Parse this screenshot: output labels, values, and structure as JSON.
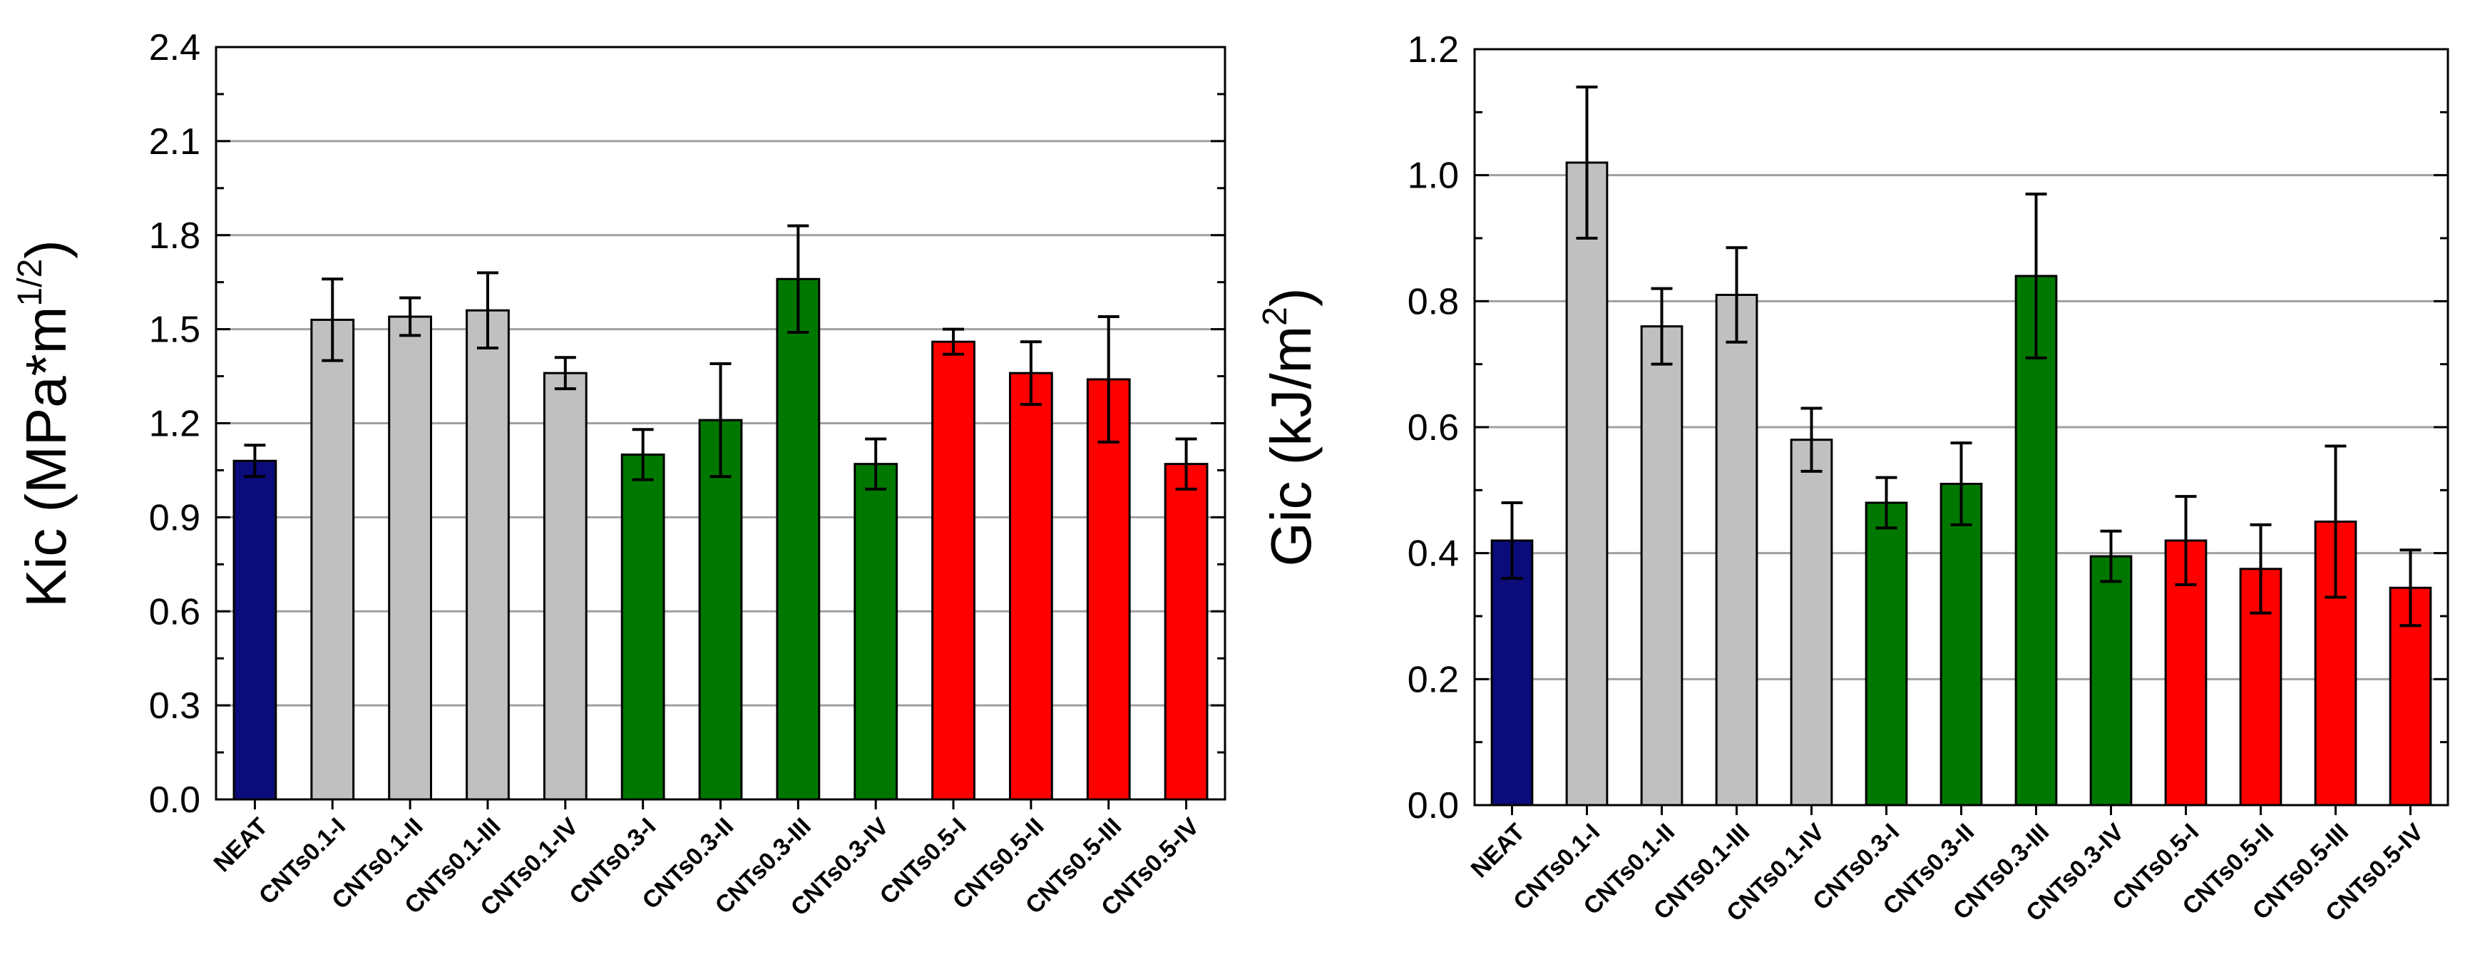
{
  "chart_data": [
    {
      "type": "bar",
      "ylabel": "Kic (MPa*m",
      "ylabel_sup": "1/2",
      "ylabel_close": ")",
      "ylim": [
        0,
        2.4
      ],
      "yticks": [
        "0.0",
        "0.3",
        "0.6",
        "0.9",
        "1.2",
        "1.5",
        "1.8",
        "2.1",
        "2.4"
      ],
      "grid": true,
      "categories": [
        "NEAT",
        "CNTs0.1-I",
        "CNTs0.1-II",
        "CNTs0.1-III",
        "CNTs0.1-IV",
        "CNTs0.3-I",
        "CNTs0.3-II",
        "CNTs0.3-III",
        "CNTs0.3-IV",
        "CNTs0.5-I",
        "CNTs0.5-II",
        "CNTs0.5-III",
        "CNTs0.5-IV"
      ],
      "values": [
        1.08,
        1.53,
        1.54,
        1.56,
        1.36,
        1.1,
        1.21,
        1.66,
        1.07,
        1.46,
        1.36,
        1.34,
        1.07
      ],
      "errors": [
        0.05,
        0.13,
        0.06,
        0.12,
        0.05,
        0.08,
        0.18,
        0.17,
        0.08,
        0.04,
        0.1,
        0.2,
        0.08
      ],
      "colors": [
        "#0b0b7a",
        "#c0c0c0",
        "#c0c0c0",
        "#c0c0c0",
        "#c0c0c0",
        "#007800",
        "#007800",
        "#007800",
        "#007800",
        "#ff0000",
        "#ff0000",
        "#ff0000",
        "#ff0000"
      ]
    },
    {
      "type": "bar",
      "ylabel": "Gic (kJ/m",
      "ylabel_sup": "2",
      "ylabel_close": ")",
      "ylim": [
        0,
        1.2
      ],
      "yticks": [
        "0.0",
        "0.2",
        "0.4",
        "0.6",
        "0.8",
        "1.0",
        "1.2"
      ],
      "grid": true,
      "categories": [
        "NEAT",
        "CNTs0.1-I",
        "CNTs0.1-II",
        "CNTs0.1-III",
        "CNTs0.1-IV",
        "CNTs0.3-I",
        "CNTs0.3-II",
        "CNTs0.3-III",
        "CNTs0.3-IV",
        "CNTs0.5-I",
        "CNTs0.5-II",
        "CNTs0.5-III",
        "CNTs0.5-IV"
      ],
      "values": [
        0.42,
        1.02,
        0.76,
        0.81,
        0.58,
        0.48,
        0.51,
        0.84,
        0.395,
        0.42,
        0.375,
        0.45,
        0.345
      ],
      "errors": [
        0.06,
        0.12,
        0.06,
        0.075,
        0.05,
        0.04,
        0.065,
        0.13,
        0.04,
        0.07,
        0.07,
        0.12,
        0.06
      ],
      "colors": [
        "#0b0b7a",
        "#c0c0c0",
        "#c0c0c0",
        "#c0c0c0",
        "#c0c0c0",
        "#007800",
        "#007800",
        "#007800",
        "#007800",
        "#ff0000",
        "#ff0000",
        "#ff0000",
        "#ff0000"
      ]
    }
  ]
}
